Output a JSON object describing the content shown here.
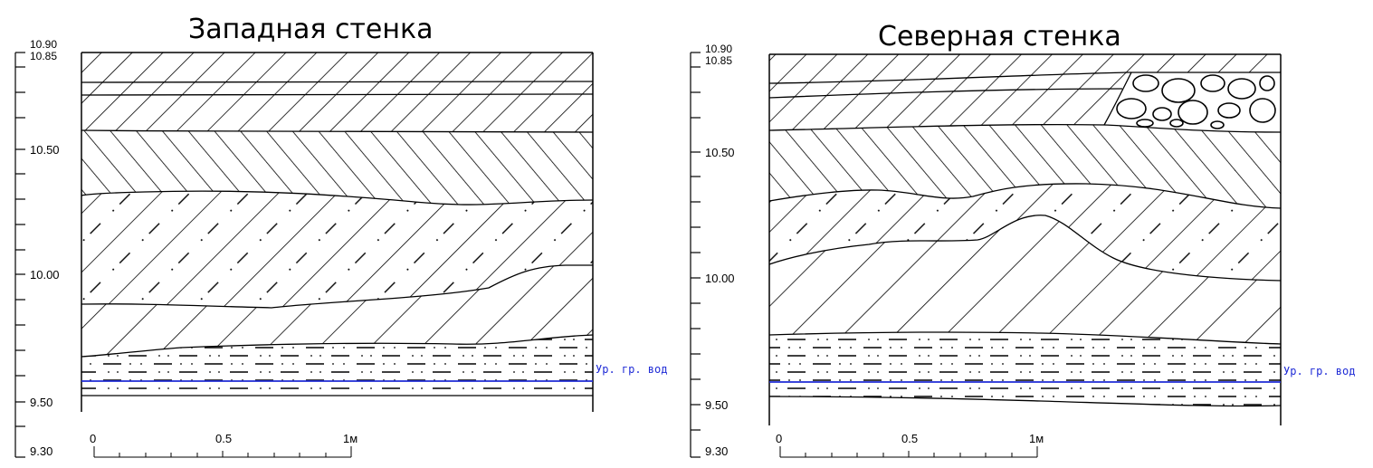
{
  "panels": [
    {
      "title": "Западная стенка",
      "elevation_labels": [
        "10.90",
        "10.85",
        "10.50",
        "10.00",
        "9.50",
        "9.30"
      ],
      "water_level_label": "Ур. гр. вод",
      "scale_labels": [
        "0",
        "0.5",
        "1м"
      ]
    },
    {
      "title": "Северная стенка",
      "elevation_labels": [
        "10.90",
        "10.85",
        "10.50",
        "10.00",
        "9.50",
        "9.30"
      ],
      "water_level_label": "Ур. гр. вод",
      "scale_labels": [
        "0",
        "0.5",
        "1м"
      ]
    }
  ],
  "colors": {
    "line": "#000000",
    "water_level": "#1f2bd6",
    "background": "#ffffff"
  }
}
